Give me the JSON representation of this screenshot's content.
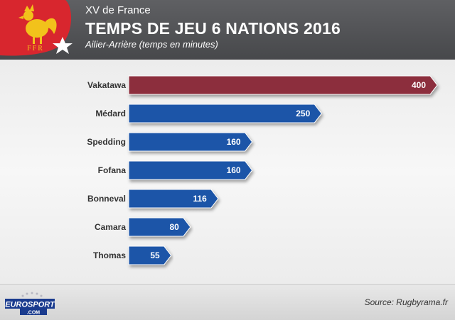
{
  "header": {
    "subtitle_top": "XV de France",
    "title": "TEMPS DE JEU 6 NATIONS 2016",
    "subtitle": "Ailier-Arrière (temps en minutes)",
    "logo_text": "FFR"
  },
  "footer": {
    "brand_top": "EUROSPORT",
    "brand_bottom": ".COM",
    "source": "Source: Rugbyrama.fr"
  },
  "colors": {
    "highlight": "#8c2e3c",
    "bar": "#1c55a8",
    "header": "#55565a",
    "logo_red": "#d8262e"
  },
  "chart_data": {
    "type": "bar",
    "orientation": "horizontal",
    "title": "TEMPS DE JEU 6 NATIONS 2016",
    "subtitle": "Ailier-Arrière (temps en minutes)",
    "categories": [
      "Vakatawa",
      "Médard",
      "Spedding",
      "Fofana",
      "Bonneval",
      "Camara",
      "Thomas"
    ],
    "values": [
      400,
      250,
      160,
      160,
      116,
      80,
      55
    ],
    "highlighted": [
      "Vakatawa"
    ],
    "xlim": [
      0,
      400
    ],
    "grid": false,
    "legend": "none",
    "data_labels": true
  }
}
